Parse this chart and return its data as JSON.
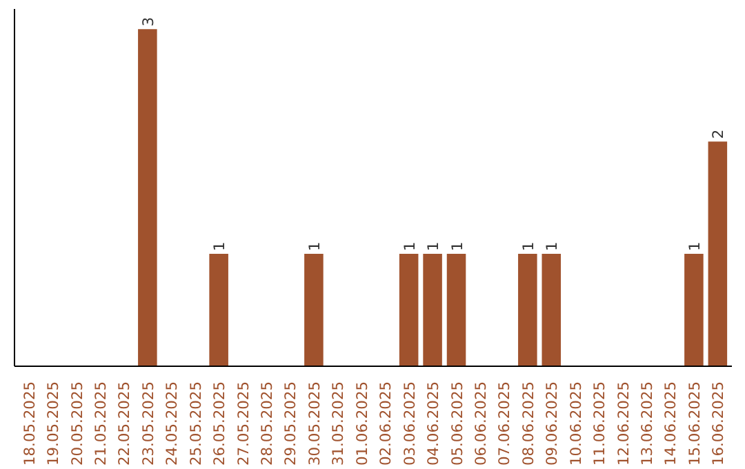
{
  "chart_data": {
    "type": "bar",
    "categories": [
      "18.05.2025",
      "19.05.2025",
      "20.05.2025",
      "21.05.2025",
      "22.05.2025",
      "23.05.2025",
      "24.05.2025",
      "25.05.2025",
      "26.05.2025",
      "27.05.2025",
      "28.05.2025",
      "29.05.2025",
      "30.05.2025",
      "31.05.2025",
      "01.06.2025",
      "02.06.2025",
      "03.06.2025",
      "04.06.2025",
      "05.06.2025",
      "06.06.2025",
      "07.06.2025",
      "08.06.2025",
      "09.06.2025",
      "10.06.2025",
      "11.06.2025",
      "12.06.2025",
      "13.06.2025",
      "14.06.2025",
      "15.06.2025",
      "16.06.2025"
    ],
    "values": [
      0,
      0,
      0,
      0,
      0,
      3,
      0,
      0,
      1,
      0,
      0,
      0,
      1,
      0,
      0,
      0,
      1,
      1,
      1,
      0,
      0,
      1,
      1,
      0,
      0,
      0,
      0,
      0,
      1,
      2
    ],
    "value_labels": [
      null,
      null,
      null,
      null,
      null,
      "3",
      null,
      null,
      "1",
      null,
      null,
      null,
      "1",
      null,
      null,
      null,
      "1",
      "1",
      "1",
      null,
      null,
      "1",
      "1",
      null,
      null,
      null,
      null,
      null,
      "1",
      "2"
    ],
    "color": "#a0522d",
    "tick_labels": "x",
    "grid": false
  }
}
